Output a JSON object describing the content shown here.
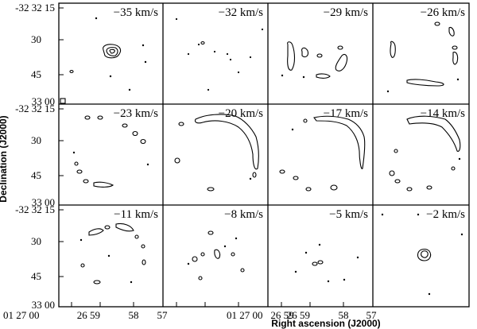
{
  "figure": {
    "panels": [
      {
        "velocity": "−35 km/s"
      },
      {
        "velocity": "−32 km/s"
      },
      {
        "velocity": "−29 km/s"
      },
      {
        "velocity": "−26 km/s"
      },
      {
        "velocity": "−23 km/s"
      },
      {
        "velocity": "−20 km/s"
      },
      {
        "velocity": "−17 km/s"
      },
      {
        "velocity": "−14 km/s"
      },
      {
        "velocity": "−11 km/s"
      },
      {
        "velocity": "−8 km/s"
      },
      {
        "velocity": "−5 km/s"
      },
      {
        "velocity": "−2 km/s"
      }
    ],
    "y_axis": {
      "label": "Declination (J2000)",
      "ticks": [
        "-32 32 15",
        "30",
        "45",
        "33 00"
      ]
    },
    "x_axis": {
      "label": "Right ascension (J2000)",
      "ticks": [
        "01 27 00",
        "26 59",
        "58",
        "57"
      ],
      "ticks_short": [
        "01 27 00"
      ]
    }
  }
}
